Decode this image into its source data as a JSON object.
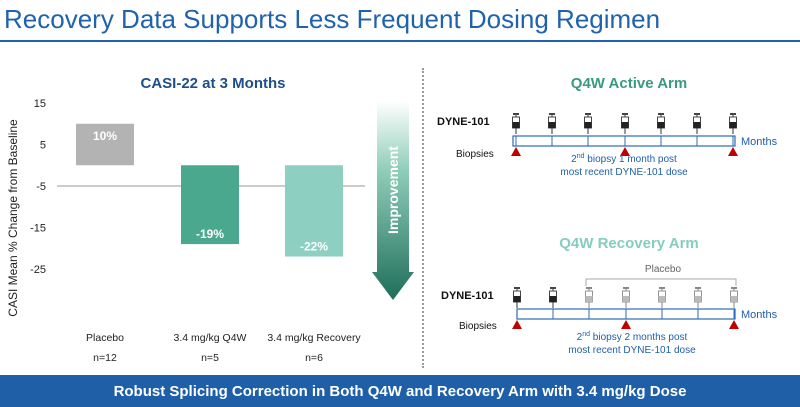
{
  "page": {
    "title": "Recovery Data Supports Less Frequent Dosing Regimen",
    "footer": "Robust Splicing Correction in Both Q4W and Recovery Arm with 3.4 mg/kg Dose"
  },
  "colors": {
    "title": "#1f63ad",
    "footer_bg": "#1f5fa8",
    "placebo_bar": "#b3b3b3",
    "q4w_bar": "#4aa88f",
    "recovery_bar": "#8dd0c2",
    "arrow_top": "#ffffff",
    "arrow_bottom": "#1f6e5a",
    "active_title": "#3a9a7e",
    "recovery_title": "#86cdbf",
    "timeline": "#2b6cb8",
    "triangle": "#c00000",
    "label_blue": "#1f5fa8"
  },
  "chart_data": {
    "type": "bar",
    "title": "CASI-22 at 3 Months",
    "ylabel": "CASI Mean % Change from Baseline",
    "ylim": [
      -25,
      15
    ],
    "yticks": [
      "15",
      "5",
      "-5",
      "-15",
      "-25"
    ],
    "categories": [
      "Placebo",
      "3.4 mg/kg Q4W",
      "3.4 mg/kg Recovery"
    ],
    "n_labels": [
      "n=12",
      "n=5",
      "n=6"
    ],
    "values": [
      10,
      -19,
      -22
    ],
    "value_labels": [
      "10%",
      "-19%",
      "-22%"
    ],
    "arrow_label": "Improvement"
  },
  "schematic": {
    "active": {
      "title": "Q4W Active Arm",
      "drug_label": "DYNE-101",
      "months_label": "Months",
      "biopsies_label": "Biopsies",
      "note_sup": "nd",
      "note_line1_prefix": "2",
      "note_line1_suffix": " biopsy 1 month post",
      "note_line2": "most recent DYNE-101 dose"
    },
    "recovery": {
      "title": "Q4W Recovery Arm",
      "placebo_label": "Placebo",
      "drug_label": "DYNE-101",
      "months_label": "Months",
      "biopsies_label": "Biopsies",
      "note_sup": "nd",
      "note_line1_prefix": "2",
      "note_line1_suffix": " biopsy 2 months post",
      "note_line2": "most recent DYNE-101 dose"
    }
  }
}
